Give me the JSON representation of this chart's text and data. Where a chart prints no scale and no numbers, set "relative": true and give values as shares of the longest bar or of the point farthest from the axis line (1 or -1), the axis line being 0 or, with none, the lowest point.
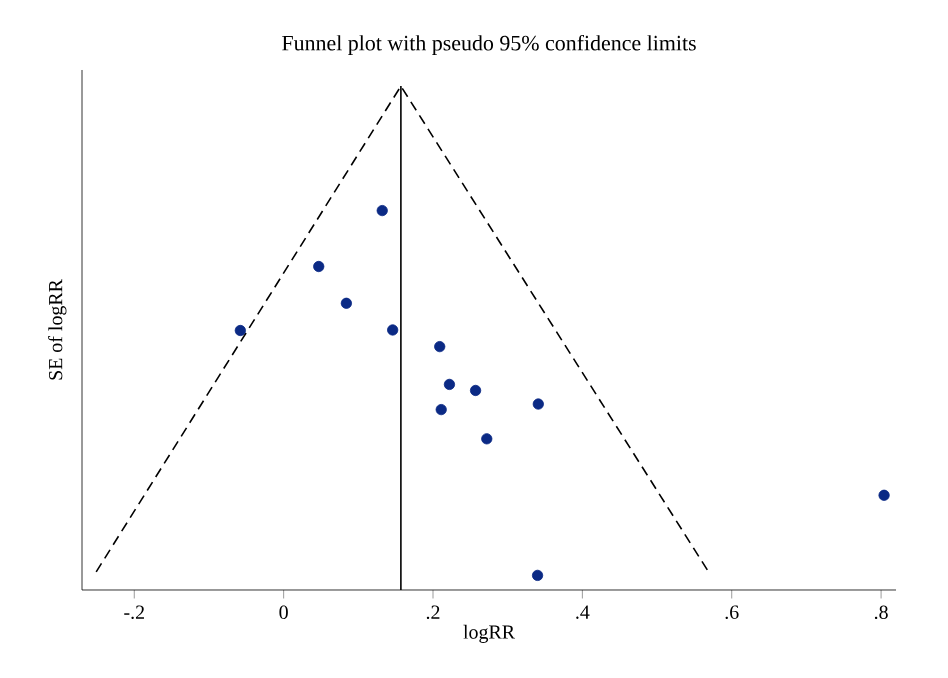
{
  "chart_data": {
    "type": "scatter",
    "title": "Funnel plot with pseudo 95% confidence limits",
    "xlabel": "logRR",
    "ylabel": "SE of logRR",
    "relative": true,
    "xlim": [
      -0.27,
      0.82
    ],
    "xticks": [
      {
        "value": -0.2,
        "label": "-.2"
      },
      0,
      {
        "value": 0.2,
        "label": ".2"
      },
      {
        "value": 0.4,
        "label": ".4"
      },
      {
        "value": 0.6,
        "label": ".6"
      },
      {
        "value": 0.8,
        "label": ".8"
      }
    ],
    "series": [
      {
        "color": "#0b2a85",
        "marker": "circle",
        "x": [
          0.132,
          0.047,
          0.084,
          -0.058,
          0.146,
          0.209,
          0.222,
          0.257,
          0.211,
          0.341,
          0.272,
          0.804,
          0.34
        ],
        "values": [
          0.753,
          0.642,
          0.569,
          0.515,
          0.516,
          0.483,
          0.408,
          0.396,
          0.358,
          0.369,
          0.3,
          0.188,
          0.029
        ]
      },
      {
        "type": "line",
        "color": "#000000",
        "marker": "none",
        "line_style": "dashed",
        "x": [
          -0.251,
          0.157,
          0.569
        ],
        "values": [
          0.036,
          1,
          0.036
        ]
      }
    ],
    "ref_lines": [
      {
        "axis": "x",
        "value": 0.157,
        "color": "#000000"
      }
    ]
  }
}
